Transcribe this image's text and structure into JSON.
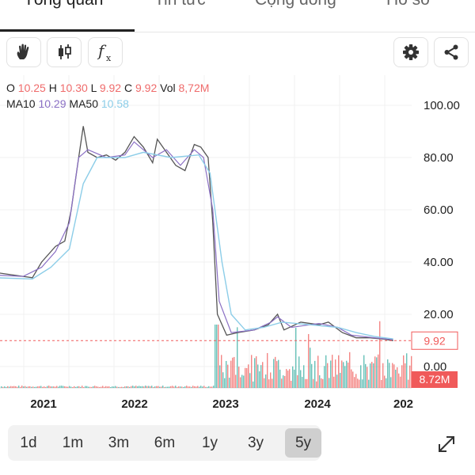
{
  "tabs": [
    {
      "label": "Tổng quan",
      "active": true
    },
    {
      "label": "Tin tức",
      "active": false
    },
    {
      "label": "Cộng đồng",
      "active": false
    },
    {
      "label": "Hồ sơ",
      "active": false
    }
  ],
  "toolbar": {
    "left_icons": [
      "hand-draw-icon",
      "candlestick-icon",
      "function-fx-icon"
    ],
    "right_icons": [
      "gear-icon",
      "share-icon"
    ],
    "fx_symbol": "f",
    "fx_sub": "x"
  },
  "ohlc": {
    "o_label": "O",
    "o": "10.25",
    "h_label": "H",
    "h": "10.30",
    "l_label": "L",
    "l": "9.92",
    "c_label": "C",
    "c": "9.92",
    "vol_label": "Vol",
    "vol": "8,72M"
  },
  "ma": {
    "ma10_label": "MA10",
    "ma10": "10.29",
    "ma50_label": "MA50",
    "ma50": "10.58"
  },
  "colors": {
    "up": "#26a69a",
    "down": "#ef5350",
    "price_line": "#555555",
    "ma10": "#8a6fc4",
    "ma50": "#8ccde8",
    "badge": "#f05a5a"
  },
  "chart_data": {
    "type": "line",
    "x_tick_labels": [
      "2021",
      "2022",
      "2023",
      "2024",
      "202"
    ],
    "y_tick_labels": [
      "100.00",
      "80.00",
      "60.00",
      "40.00",
      "20.00",
      "0.00"
    ],
    "ylim": [
      0,
      100
    ],
    "last_price": 9.92,
    "last_price_label": "9.92",
    "last_volume_label": "8.72M",
    "series": [
      {
        "values": [
          [
            2020.0,
            36
          ],
          [
            2020.2,
            35
          ],
          [
            2020.4,
            34
          ],
          [
            2020.5,
            40
          ],
          [
            2020.65,
            46
          ],
          [
            2020.75,
            48
          ],
          [
            2020.82,
            60
          ],
          [
            2020.88,
            75
          ],
          [
            2020.95,
            92
          ],
          [
            2021.0,
            82
          ],
          [
            2021.1,
            80
          ],
          [
            2021.2,
            81
          ],
          [
            2021.3,
            79
          ],
          [
            2021.4,
            82
          ],
          [
            2021.5,
            88
          ],
          [
            2021.6,
            84
          ],
          [
            2021.7,
            78
          ],
          [
            2021.75,
            87
          ],
          [
            2021.85,
            82
          ],
          [
            2021.95,
            77
          ],
          [
            2022.05,
            75
          ],
          [
            2022.15,
            85
          ],
          [
            2022.22,
            84
          ],
          [
            2022.3,
            80
          ],
          [
            2022.35,
            55
          ],
          [
            2022.4,
            20
          ],
          [
            2022.5,
            12
          ],
          [
            2022.62,
            13
          ],
          [
            2022.8,
            14
          ],
          [
            2022.95,
            16
          ],
          [
            2023.05,
            20
          ],
          [
            2023.12,
            14
          ],
          [
            2023.3,
            17
          ],
          [
            2023.5,
            16
          ],
          [
            2023.6,
            17
          ],
          [
            2023.75,
            13
          ],
          [
            2023.9,
            11
          ],
          [
            2024.05,
            11
          ],
          [
            2024.2,
            10.5
          ],
          [
            2024.3,
            9.92
          ]
        ]
      },
      {
        "values": [
          [
            2020.0,
            35
          ],
          [
            2020.3,
            34.5
          ],
          [
            2020.5,
            38
          ],
          [
            2020.65,
            44
          ],
          [
            2020.8,
            55
          ],
          [
            2020.9,
            80
          ],
          [
            2021.0,
            83
          ],
          [
            2021.2,
            80
          ],
          [
            2021.4,
            81
          ],
          [
            2021.5,
            86
          ],
          [
            2021.7,
            80
          ],
          [
            2021.85,
            83
          ],
          [
            2022.0,
            77
          ],
          [
            2022.15,
            83
          ],
          [
            2022.25,
            80
          ],
          [
            2022.35,
            60
          ],
          [
            2022.42,
            25
          ],
          [
            2022.55,
            13
          ],
          [
            2022.8,
            14
          ],
          [
            2022.98,
            17
          ],
          [
            2023.05,
            19
          ],
          [
            2023.2,
            15
          ],
          [
            2023.5,
            16.5
          ],
          [
            2023.7,
            15
          ],
          [
            2023.85,
            12
          ],
          [
            2024.1,
            11
          ],
          [
            2024.3,
            10.29
          ]
        ]
      },
      {
        "values": [
          [
            2020.0,
            34
          ],
          [
            2020.4,
            33.5
          ],
          [
            2020.6,
            38
          ],
          [
            2020.8,
            45
          ],
          [
            2020.95,
            70
          ],
          [
            2021.1,
            80
          ],
          [
            2021.4,
            80
          ],
          [
            2021.6,
            82
          ],
          [
            2021.9,
            80
          ],
          [
            2022.2,
            81
          ],
          [
            2022.32,
            74
          ],
          [
            2022.45,
            40
          ],
          [
            2022.55,
            20
          ],
          [
            2022.7,
            14
          ],
          [
            2022.9,
            15
          ],
          [
            2023.1,
            17
          ],
          [
            2023.4,
            16
          ],
          [
            2023.7,
            15
          ],
          [
            2023.9,
            13
          ],
          [
            2024.1,
            11.5
          ],
          [
            2024.3,
            10.58
          ]
        ]
      }
    ]
  },
  "ranges": [
    {
      "label": "1d",
      "active": false
    },
    {
      "label": "1m",
      "active": false
    },
    {
      "label": "3m",
      "active": false
    },
    {
      "label": "6m",
      "active": false
    },
    {
      "label": "1y",
      "active": false
    },
    {
      "label": "3y",
      "active": false
    },
    {
      "label": "5y",
      "active": true
    }
  ],
  "expand_icon": "expand-arrows-icon"
}
